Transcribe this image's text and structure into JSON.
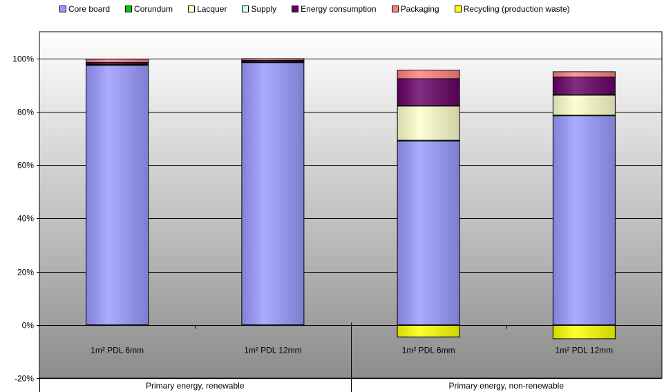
{
  "chart_data": {
    "type": "bar",
    "stacked": true,
    "categories": [
      "1m² PDL 6mm",
      "1m² PDL 12mm",
      "1m² PDL 6mm",
      "1m² PDL 12mm"
    ],
    "groups": [
      {
        "label": "Primary energy, renewable",
        "categories": [
          0,
          1
        ]
      },
      {
        "label": "Primary energy, non-renewable",
        "categories": [
          2,
          3
        ]
      }
    ],
    "series": [
      {
        "name": "Core board",
        "color": "#9999ff",
        "values": [
          97.5,
          98.5,
          69.0,
          78.5
        ]
      },
      {
        "name": "Corundum",
        "color": "#00cc00",
        "values": [
          0.1,
          0.1,
          0.3,
          0.2
        ]
      },
      {
        "name": "Lacquer",
        "color": "#ffffcc",
        "values": [
          0.2,
          0.1,
          12.8,
          7.5
        ]
      },
      {
        "name": "Supply",
        "color": "#ccffff",
        "values": [
          0.1,
          0.1,
          0.3,
          0.3
        ]
      },
      {
        "name": "Energy consumption",
        "color": "#660066",
        "values": [
          0.6,
          0.5,
          10.0,
          6.5
        ]
      },
      {
        "name": "Packaging",
        "color": "#ff8080",
        "values": [
          1.2,
          0.6,
          3.2,
          2.0
        ]
      },
      {
        "name": "Recycling (production waste)",
        "color": "#ffff00",
        "values": [
          -0.1,
          -0.1,
          -4.5,
          -5.2
        ]
      }
    ],
    "ylim": [
      -20,
      110
    ],
    "yticks": [
      "-20%",
      "0%",
      "20%",
      "40%",
      "60%",
      "80%",
      "100%"
    ],
    "ytick_values": [
      -20,
      0,
      20,
      40,
      60,
      80,
      100
    ],
    "legend_position": "top",
    "grid": true
  }
}
